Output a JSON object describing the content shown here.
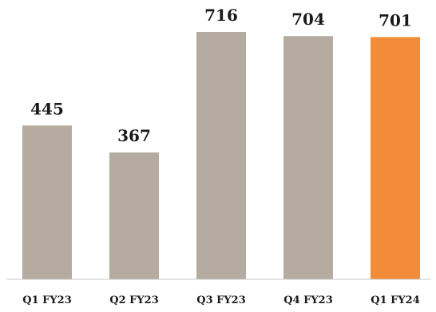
{
  "chart_data": {
    "type": "bar",
    "title": "",
    "xlabel": "",
    "ylabel": "",
    "categories": [
      "Q1 FY23",
      "Q2 FY23",
      "Q3 FY23",
      "Q4 FY23",
      "Q1 FY24"
    ],
    "values": [
      445,
      367,
      716,
      704,
      701
    ],
    "value_labels": [
      "445",
      "367",
      "716",
      "704",
      "701"
    ],
    "ylim": [
      0,
      716
    ],
    "grid": false,
    "legend": "none",
    "colors": {
      "default_bar": "#b5aba0",
      "highlight_bar": "#f28c38",
      "axis": "#c8c8c8",
      "text": "#1a1a1a"
    },
    "highlight_index": 4
  }
}
